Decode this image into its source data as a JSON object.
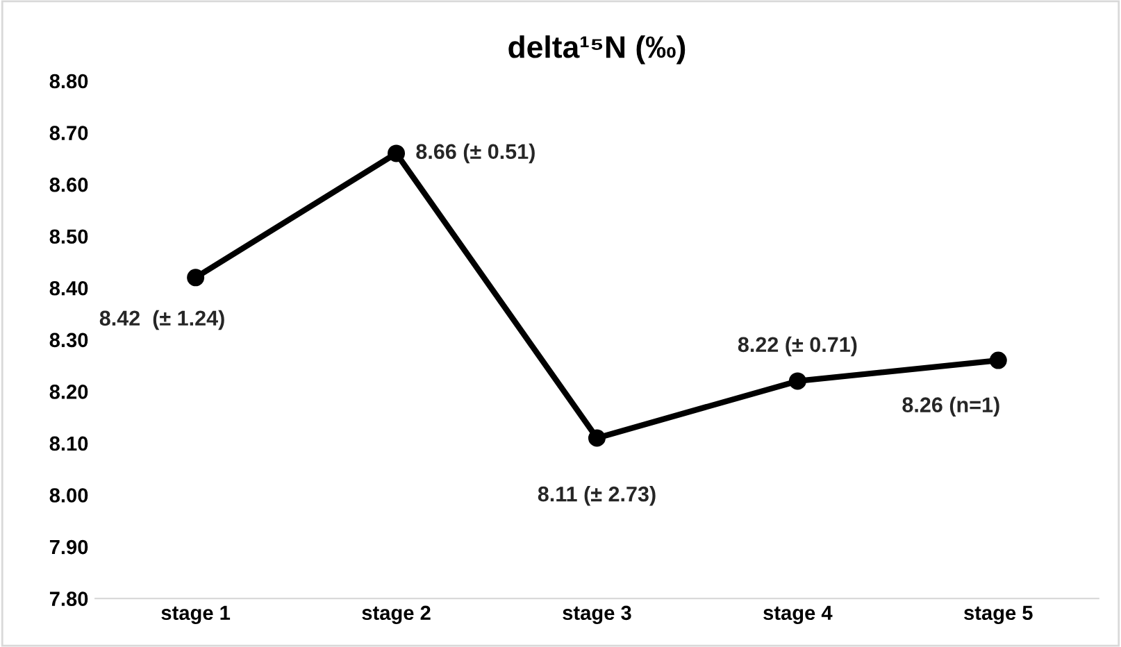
{
  "chart_data": {
    "type": "line",
    "title": "delta¹⁵N (‰)",
    "categories": [
      "stage 1",
      "stage 2",
      "stage 3",
      "stage 4",
      "stage 5"
    ],
    "values": [
      8.42,
      8.66,
      8.11,
      8.22,
      8.26
    ],
    "value_labels": [
      "8.42  (± 1.24)",
      "8.66 (± 0.51)",
      "8.11 (± 2.73)",
      "8.22 (± 0.71)",
      "8.26 (n=1)"
    ],
    "color": "#000000",
    "marker": "circle",
    "line_style": "solid",
    "grid": false,
    "legend": false,
    "ylim": [
      7.8,
      8.8
    ],
    "yticks": [
      {
        "value": 7.8,
        "label": "7.80"
      },
      {
        "value": 7.9,
        "label": "7.90"
      },
      {
        "value": 8.0,
        "label": "8.00"
      },
      {
        "value": 8.1,
        "label": "8.10"
      },
      {
        "value": 8.2,
        "label": "8.20"
      },
      {
        "value": 8.3,
        "label": "8.30"
      },
      {
        "value": 8.4,
        "label": "8.40"
      },
      {
        "value": 8.5,
        "label": "8.50"
      },
      {
        "value": 8.6,
        "label": "8.60"
      },
      {
        "value": 8.7,
        "label": "8.70"
      },
      {
        "value": 8.8,
        "label": "8.80"
      }
    ]
  }
}
